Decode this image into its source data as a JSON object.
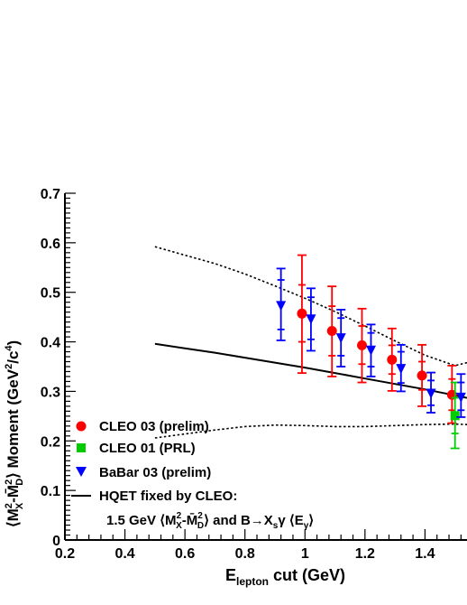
{
  "chart_data": {
    "type": "scatter",
    "xlabel": {
      "main": "E",
      "sub": "lepton",
      "rest": " cut (GeV)"
    },
    "ylabel": {
      "prefix": "⟨M",
      "sub1": "X",
      "sup1": "2",
      "mid": "-M̄",
      "sub2": "D",
      "sup2": "2",
      "close": "⟩ Moment (GeV",
      "sup3": "2",
      "slash": "/c",
      "sup4": "4",
      "end": ")"
    },
    "xlim": [
      0.2,
      1.54
    ],
    "ylim": [
      0.0,
      0.7
    ],
    "xticks": [
      "0.2",
      "0.4",
      "0.6",
      "0.8",
      "1",
      "1.2",
      "1.4"
    ],
    "yticks": [
      "0",
      "0.1",
      "0.2",
      "0.3",
      "0.4",
      "0.5",
      "0.6",
      "0.7"
    ],
    "series": [
      {
        "name": "CLEO 03 (prelim)",
        "marker": "circle",
        "color": "#ff0000",
        "points": [
          {
            "x": 0.99,
            "y": 0.457,
            "inner_lo": 0.4,
            "inner_hi": 0.515,
            "lo": 0.337,
            "hi": 0.575
          },
          {
            "x": 1.09,
            "y": 0.422,
            "inner_lo": 0.372,
            "inner_hi": 0.472,
            "lo": 0.33,
            "hi": 0.512
          },
          {
            "x": 1.19,
            "y": 0.393,
            "inner_lo": 0.355,
            "inner_hi": 0.432,
            "lo": 0.318,
            "hi": 0.467
          },
          {
            "x": 1.29,
            "y": 0.364,
            "inner_lo": 0.335,
            "inner_hi": 0.393,
            "lo": 0.301,
            "hi": 0.427
          },
          {
            "x": 1.39,
            "y": 0.332,
            "inner_lo": 0.303,
            "inner_hi": 0.36,
            "lo": 0.27,
            "hi": 0.394
          },
          {
            "x": 1.49,
            "y": 0.293,
            "inner_lo": 0.262,
            "inner_hi": 0.325,
            "lo": 0.236,
            "hi": 0.352
          }
        ]
      },
      {
        "name": "CLEO 01 (PRL)",
        "marker": "square",
        "color": "#00cc00",
        "points": [
          {
            "x": 1.5,
            "y": 0.251,
            "inner_lo": 0.215,
            "inner_hi": 0.287,
            "lo": 0.185,
            "hi": 0.318
          }
        ]
      },
      {
        "name": "BaBar 03 (prelim)",
        "marker": "triangle-down",
        "color": "#0000ff",
        "points": [
          {
            "x": 0.92,
            "y": 0.475,
            "inner_lo": 0.425,
            "inner_hi": 0.525,
            "lo": 0.403,
            "hi": 0.548
          },
          {
            "x": 1.02,
            "y": 0.448,
            "inner_lo": 0.405,
            "inner_hi": 0.49,
            "lo": 0.382,
            "hi": 0.508
          },
          {
            "x": 1.12,
            "y": 0.41,
            "inner_lo": 0.372,
            "inner_hi": 0.448,
            "lo": 0.35,
            "hi": 0.465
          },
          {
            "x": 1.22,
            "y": 0.385,
            "inner_lo": 0.35,
            "inner_hi": 0.418,
            "lo": 0.33,
            "hi": 0.435
          },
          {
            "x": 1.32,
            "y": 0.348,
            "inner_lo": 0.317,
            "inner_hi": 0.38,
            "lo": 0.3,
            "hi": 0.394
          },
          {
            "x": 1.42,
            "y": 0.298,
            "inner_lo": 0.272,
            "inner_hi": 0.322,
            "lo": 0.257,
            "hi": 0.338
          },
          {
            "x": 1.52,
            "y": 0.29,
            "inner_lo": 0.262,
            "inner_hi": 0.318,
            "lo": 0.248,
            "hi": 0.335
          }
        ]
      }
    ],
    "curves": [
      {
        "name": "HQET fixed by CLEO",
        "style": "solid",
        "x": [
          0.5,
          0.6,
          0.7,
          0.8,
          0.9,
          1.0,
          1.1,
          1.2,
          1.3,
          1.4,
          1.5,
          1.54
        ],
        "y": [
          0.396,
          0.387,
          0.378,
          0.368,
          0.358,
          0.348,
          0.337,
          0.326,
          0.315,
          0.304,
          0.292,
          0.287
        ]
      },
      {
        "style": "dotted",
        "x": [
          0.5,
          0.6,
          0.7,
          0.8,
          0.9,
          1.0,
          1.1,
          1.2,
          1.3,
          1.4,
          1.5,
          1.54
        ],
        "y": [
          0.592,
          0.575,
          0.558,
          0.537,
          0.513,
          0.488,
          0.461,
          0.432,
          0.402,
          0.373,
          0.352,
          0.358
        ]
      },
      {
        "style": "dotted",
        "x": [
          0.5,
          0.6,
          0.7,
          0.8,
          0.9,
          1.0,
          1.1,
          1.2,
          1.3,
          1.4,
          1.5,
          1.54
        ],
        "y": [
          0.206,
          0.214,
          0.222,
          0.229,
          0.232,
          0.231,
          0.229,
          0.229,
          0.231,
          0.233,
          0.234,
          0.233
        ]
      }
    ],
    "legend": {
      "placement": "bottom-left",
      "entries": [
        {
          "label": "CLEO 03 (prelim)",
          "marker": "circle",
          "color": "#ff0000"
        },
        {
          "label": "CLEO 01 (PRL)",
          "marker": "square",
          "color": "#00cc00"
        },
        {
          "label": "BaBar 03 (prelim)",
          "marker": "triangle-down",
          "color": "#0000ff"
        },
        {
          "label": "HQET fixed by CLEO:",
          "marker": "line",
          "color": "#000000"
        }
      ],
      "note": {
        "prefix": "1.5 GeV ⟨M",
        "sub1": "X",
        "sup1": "2",
        "mid": "-M̄",
        "sub2": "D",
        "sup2": "2",
        "close": "⟩ and B→X",
        "sub3": "s",
        "gamma": "γ ⟨E",
        "sub4": "γ",
        "end": "⟩"
      }
    }
  }
}
